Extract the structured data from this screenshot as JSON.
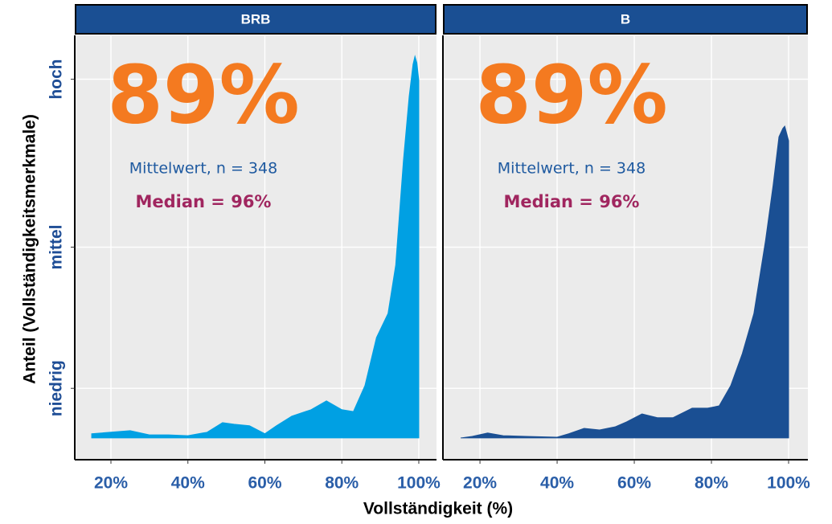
{
  "chart_data": [
    {
      "type": "area",
      "title": "BRB",
      "color": "#00a0e3",
      "xlabel": "Vollständigkeit (%)",
      "ylabel": "Anteil (Vollständigkeitsmerkmale)",
      "annotations": [
        "89%",
        "Mittelwert, n = 348",
        "Median = 96%"
      ],
      "x": [
        15,
        25,
        30,
        35,
        40,
        45,
        49,
        52,
        56,
        60,
        63,
        67,
        72,
        76,
        80,
        83,
        86,
        89,
        92,
        94,
        96,
        97.5,
        98.5,
        99,
        99.5,
        100
      ],
      "values": [
        0.011,
        0.019,
        0.008,
        0.008,
        0.006,
        0.015,
        0.04,
        0.036,
        0.032,
        0.011,
        0.032,
        0.057,
        0.074,
        0.097,
        0.074,
        0.069,
        0.137,
        0.263,
        0.326,
        0.453,
        0.726,
        0.895,
        0.979,
        1.0,
        0.983,
        0.937
      ],
      "xlim": [
        10.6,
        104.6
      ],
      "ylim": [
        -0.057,
        1.055
      ],
      "xticks": [
        {
          "value": 20,
          "label": "20%"
        },
        {
          "value": 40,
          "label": "40%"
        },
        {
          "value": 60,
          "label": "60%"
        },
        {
          "value": 80,
          "label": "80%"
        },
        {
          "value": 100,
          "label": "100%"
        }
      ],
      "yticks": [
        {
          "value": 0.13,
          "label": "niedrig"
        },
        {
          "value": 0.5,
          "label": "mittel"
        },
        {
          "value": 0.94,
          "label": "hoch"
        }
      ],
      "grid": true
    },
    {
      "type": "area",
      "title": "B",
      "color": "#1a4f93",
      "annotations": [
        "89%",
        "Mittelwert, n = 348",
        "Median = 96%"
      ],
      "x": [
        15,
        18,
        22,
        26,
        32,
        40,
        43,
        47,
        51,
        55,
        58,
        62,
        66,
        70,
        75,
        79,
        82,
        85,
        88,
        91,
        94,
        96,
        97.5,
        98.5,
        99,
        100
      ],
      "values": [
        0.0,
        0.004,
        0.013,
        0.006,
        0.004,
        0.002,
        0.011,
        0.025,
        0.021,
        0.029,
        0.042,
        0.063,
        0.053,
        0.053,
        0.078,
        0.078,
        0.084,
        0.137,
        0.221,
        0.326,
        0.516,
        0.663,
        0.789,
        0.811,
        0.817,
        0.779
      ],
      "xlim": [
        10.4,
        105
      ],
      "ylim": [
        -0.057,
        1.055
      ],
      "xticks": [
        {
          "value": 20,
          "label": "20%"
        },
        {
          "value": 40,
          "label": "40%"
        },
        {
          "value": 60,
          "label": "60%"
        },
        {
          "value": 80,
          "label": "80%"
        },
        {
          "value": 100,
          "label": "100%"
        }
      ],
      "grid": true
    }
  ]
}
